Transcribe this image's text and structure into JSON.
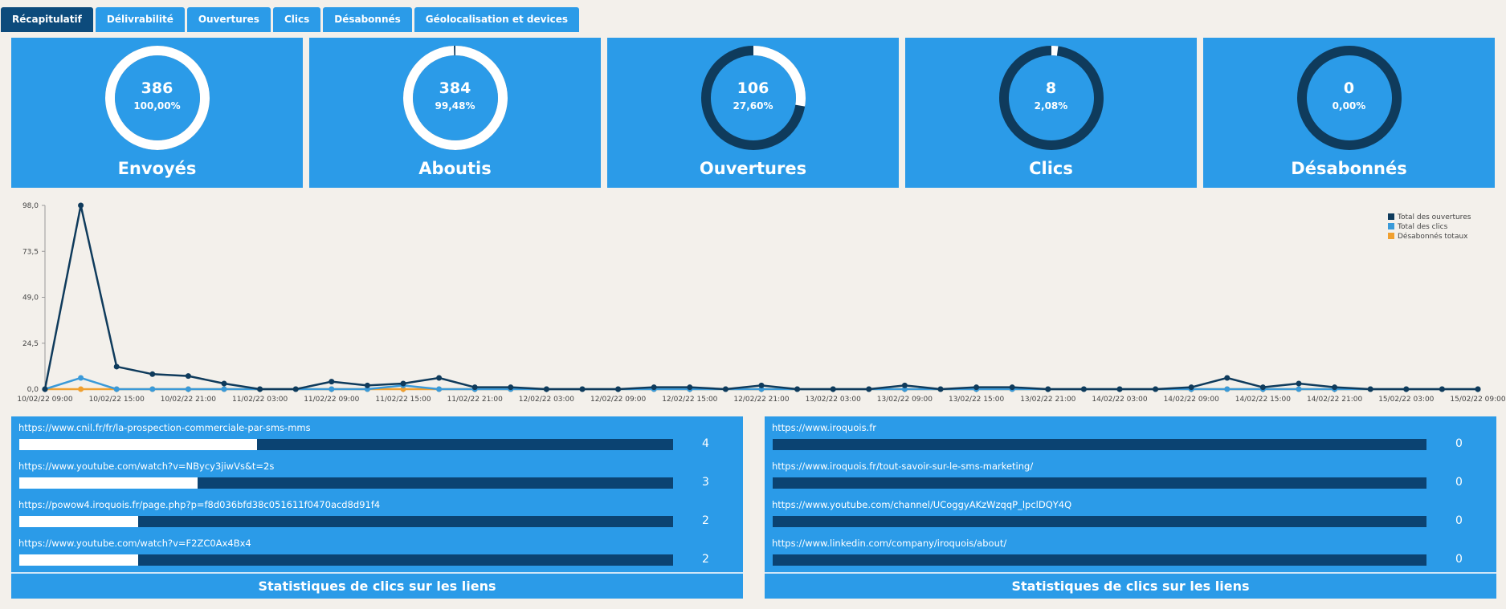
{
  "tabs": [
    "Récapitulatif",
    "Délivrabilité",
    "Ouvertures",
    "Clics",
    "Désabonnés",
    "Géolocalisation et devices"
  ],
  "kpis": [
    {
      "value": 386,
      "percent": 100,
      "percent_label": "100,00%",
      "label": "Envoyés"
    },
    {
      "value": 384,
      "percent": 99.48,
      "percent_label": "99,48%",
      "label": "Aboutis"
    },
    {
      "value": 106,
      "percent": 27.6,
      "percent_label": "27,60%",
      "label": "Ouvertures"
    },
    {
      "value": 8,
      "percent": 2.08,
      "percent_label": "2,08%",
      "label": "Clics"
    },
    {
      "value": 0,
      "percent": 0,
      "percent_label": "0,00%",
      "label": "Désabonnés"
    }
  ],
  "chart_data": {
    "type": "line",
    "categories": [
      "10/02/22 09:00",
      null,
      "10/02/22 15:00",
      null,
      "10/02/22 21:00",
      null,
      "11/02/22 03:00",
      null,
      "11/02/22 09:00",
      null,
      "11/02/22 15:00",
      null,
      "11/02/22 21:00",
      null,
      "12/02/22 03:00",
      null,
      "12/02/22 09:00",
      null,
      "12/02/22 15:00",
      null,
      "12/02/22 21:00",
      null,
      "13/02/22 03:00",
      null,
      "13/02/22 09:00",
      null,
      "13/02/22 15:00",
      null,
      "13/02/22 21:00",
      null,
      "14/02/22 03:00",
      null,
      "14/02/22 09:00",
      null,
      "14/02/22 15:00",
      null,
      "14/02/22 21:00",
      null,
      "15/02/22 03:00",
      null,
      "15/02/22 09:00"
    ],
    "series": [
      {
        "name": "Total des ouvertures",
        "color": "#0f3b5c",
        "values": [
          0,
          98,
          12,
          8,
          7,
          3,
          0,
          0,
          4,
          2,
          3,
          6,
          1,
          1,
          0,
          0,
          0,
          1,
          1,
          0,
          2,
          0,
          0,
          0,
          2,
          0,
          1,
          1,
          0,
          0,
          0,
          0,
          1,
          6,
          1,
          3,
          1,
          0,
          0,
          0,
          0
        ]
      },
      {
        "name": "Total des clics",
        "color": "#3a9ad9",
        "values": [
          0,
          6,
          0,
          0,
          0,
          0,
          0,
          0,
          0,
          0,
          2,
          0,
          0,
          0,
          0,
          0,
          0,
          0,
          0,
          0,
          0,
          0,
          0,
          0,
          0,
          0,
          0,
          0,
          0,
          0,
          0,
          0,
          0,
          0,
          0,
          0,
          0,
          0,
          0,
          0,
          0
        ]
      },
      {
        "name": "Désabonnés totaux",
        "color": "#f0a030",
        "values": [
          0,
          0,
          0,
          0,
          0,
          0,
          0,
          0,
          0,
          0,
          0,
          0,
          0,
          0,
          0,
          0,
          0,
          0,
          0,
          0,
          0,
          0,
          0,
          0,
          0,
          0,
          0,
          0,
          0,
          0,
          0,
          0,
          0,
          0,
          0,
          0,
          0,
          0,
          0,
          0,
          0
        ]
      }
    ],
    "ylim": [
      0,
      98
    ],
    "yticks": [
      {
        "value": 0,
        "label": "0,0"
      },
      {
        "value": 24.5,
        "label": "24,5"
      },
      {
        "value": 49,
        "label": "49,0"
      },
      {
        "value": 73.5,
        "label": "73,5"
      },
      {
        "value": 98,
        "label": "98,0"
      }
    ],
    "legend": "top-right"
  },
  "link_panels": [
    {
      "title": "Statistiques de clics sur les liens",
      "links": [
        {
          "url": "https://www.cnil.fr/fr/la-prospection-commerciale-par-sms-mms",
          "count": 4
        },
        {
          "url": "https://www.youtube.com/watch?v=NBycy3jiwVs&t=2s",
          "count": 3
        },
        {
          "url": "https://powow4.iroquois.fr/page.php?p=f8d036bfd38c051611f0470acd8d91f4",
          "count": 2
        },
        {
          "url": "https://www.youtube.com/watch?v=F2ZC0Ax4Bx4",
          "count": 2
        }
      ]
    },
    {
      "title": "Statistiques de clics sur les liens",
      "links": [
        {
          "url": "https://www.iroquois.fr",
          "count": 0
        },
        {
          "url": "https://www.iroquois.fr/tout-savoir-sur-le-sms-marketing/",
          "count": 0
        },
        {
          "url": "https://www.youtube.com/channel/UCoggyAKzWzqqP_lpclDQY4Q",
          "count": 0
        },
        {
          "url": "https://www.linkedin.com/company/iroquois/about/",
          "count": 0
        }
      ]
    }
  ]
}
